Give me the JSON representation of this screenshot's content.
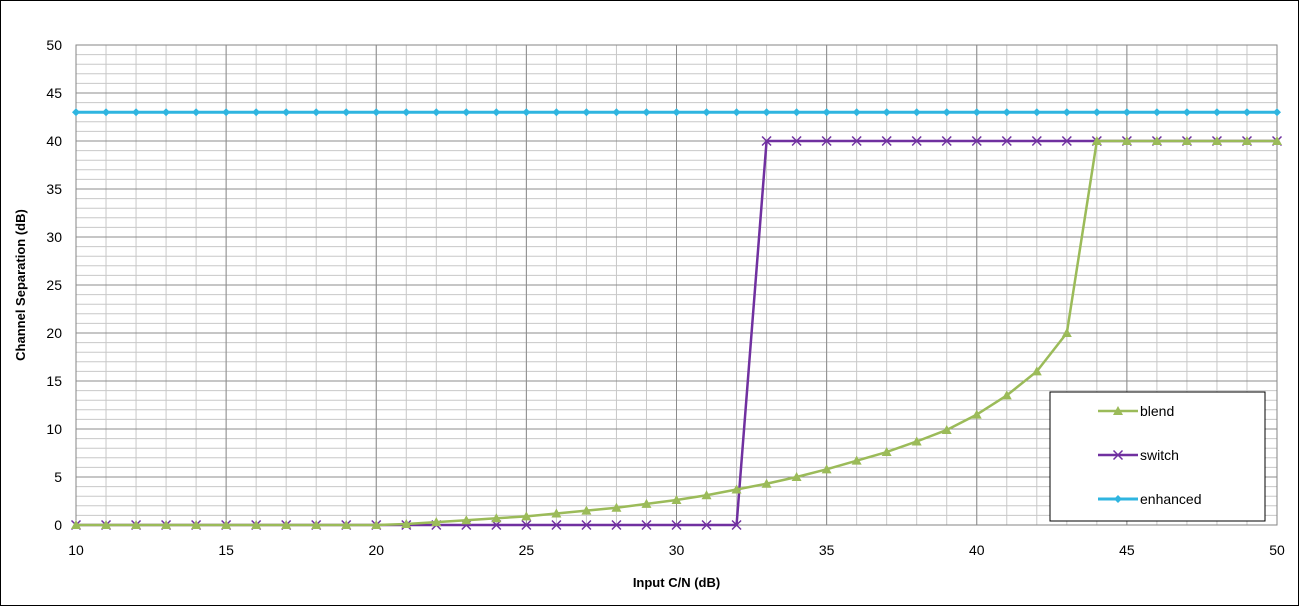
{
  "chart_data": {
    "type": "line",
    "xlabel": "Input C/N (dB)",
    "ylabel": "Channel Separation (dB)",
    "xlim": [
      10,
      50
    ],
    "ylim": [
      0,
      50
    ],
    "x_ticks": [
      10,
      15,
      20,
      25,
      30,
      35,
      40,
      45,
      50
    ],
    "y_ticks": [
      0,
      5,
      10,
      15,
      20,
      25,
      30,
      35,
      40,
      45,
      50
    ],
    "x": [
      10,
      11,
      12,
      13,
      14,
      15,
      16,
      17,
      18,
      19,
      20,
      21,
      22,
      23,
      24,
      25,
      26,
      27,
      28,
      29,
      30,
      31,
      32,
      33,
      34,
      35,
      36,
      37,
      38,
      39,
      40,
      41,
      42,
      43,
      44,
      45,
      46,
      47,
      48,
      49,
      50
    ],
    "grid": true,
    "legend_position": "bottom-right",
    "series": [
      {
        "name": "blend",
        "color": "#9BBB59",
        "marker": "triangle",
        "values": [
          0,
          0,
          0,
          0,
          0,
          0,
          0,
          0,
          0,
          0,
          0,
          0.1,
          0.3,
          0.5,
          0.7,
          0.9,
          1.2,
          1.5,
          1.8,
          2.2,
          2.6,
          3.1,
          3.7,
          4.3,
          5.0,
          5.8,
          6.7,
          7.6,
          8.7,
          9.9,
          11.5,
          13.5,
          16.0,
          20.0,
          40,
          40,
          40,
          40,
          40,
          40,
          40
        ]
      },
      {
        "name": "switch",
        "color": "#7030A0",
        "marker": "x",
        "values": [
          0,
          0,
          0,
          0,
          0,
          0,
          0,
          0,
          0,
          0,
          0,
          0,
          0,
          0,
          0,
          0,
          0,
          0,
          0,
          0,
          0,
          0,
          0,
          40,
          40,
          40,
          40,
          40,
          40,
          40,
          40,
          40,
          40,
          40,
          40,
          40,
          40,
          40,
          40,
          40,
          40
        ]
      },
      {
        "name": "enhanced",
        "color": "#2FB5E0",
        "marker": "diamond",
        "values": [
          43,
          43,
          43,
          43,
          43,
          43,
          43,
          43,
          43,
          43,
          43,
          43,
          43,
          43,
          43,
          43,
          43,
          43,
          43,
          43,
          43,
          43,
          43,
          43,
          43,
          43,
          43,
          43,
          43,
          43,
          43,
          43,
          43,
          43,
          43,
          43,
          43,
          43,
          43,
          43,
          43
        ]
      }
    ]
  }
}
